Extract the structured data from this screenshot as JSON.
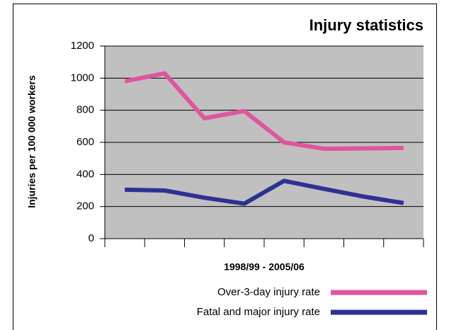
{
  "chart_data": {
    "type": "line",
    "title": "Injury statistics",
    "xlabel": "1998/99 - 2005/06",
    "ylabel": "Injuries per 100 000 workers",
    "categories": [
      null,
      null,
      null,
      null,
      null,
      null,
      null,
      null
    ],
    "series": [
      {
        "name": "Over-3-day injury rate",
        "color": "#e0559e",
        "values": [
          980,
          1030,
          750,
          795,
          600,
          560,
          562,
          565
        ]
      },
      {
        "name": "Fatal and major injury rate",
        "color": "#2e3192",
        "values": [
          305,
          300,
          255,
          218,
          360,
          310,
          262,
          222
        ]
      }
    ],
    "ylim": [
      0,
      1200
    ],
    "yticks": [
      0,
      200,
      400,
      600,
      800,
      1000,
      1200
    ],
    "grid": true,
    "legend": "bottom-right"
  }
}
